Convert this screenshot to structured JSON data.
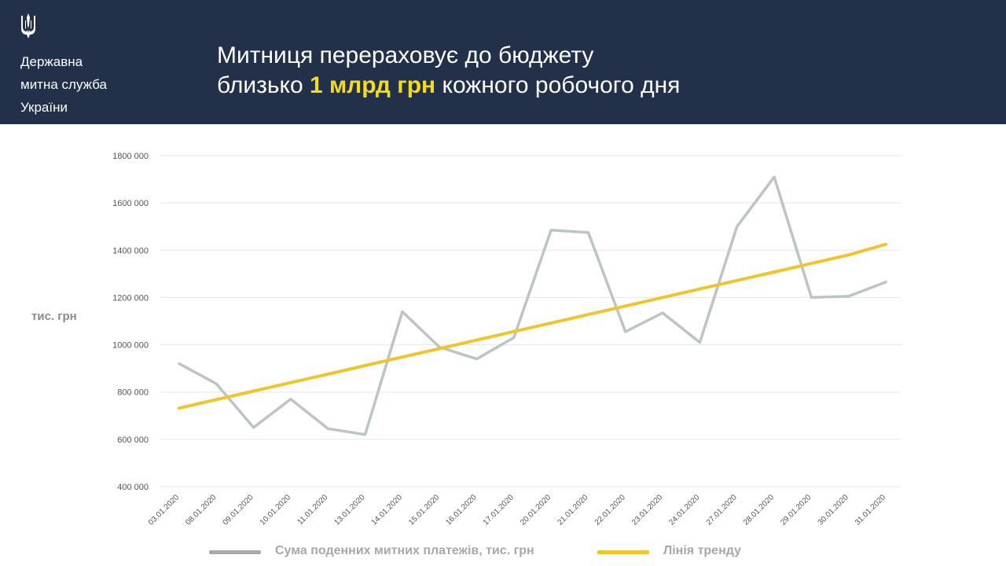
{
  "header": {
    "org_lines": [
      "Державна",
      "митна служба",
      "України"
    ],
    "title_line1": "Митниця перераховує до бюджету",
    "title_line2_before": "близько ",
    "title_line2_accent": "1 млрд грн",
    "title_line2_after": " кожного робочого дня",
    "accent_color": "#f2dc1c",
    "background_color": "#22304a"
  },
  "chart_data": {
    "type": "line",
    "x": [
      "03.01.2020",
      "08.01.2020",
      "09.01.2020",
      "10.01.2020",
      "11.01.2020",
      "13.01.2020",
      "14.01.2020",
      "15.01.2020",
      "16.01.2020",
      "17.01.2020",
      "20.01.2020",
      "21.01.2020",
      "22.01.2020",
      "23.01.2020",
      "24.01.2020",
      "27.01.2020",
      "28.01.2020",
      "29.01.2020",
      "30.01.2020",
      "31.01.2020"
    ],
    "series": [
      {
        "name": "Сума поденних митних платежів, тис. грн",
        "color": "#bcc5c3",
        "values": [
          920000,
          835000,
          650000,
          770000,
          645000,
          620000,
          1140000,
          990000,
          940000,
          1030000,
          1485000,
          1475000,
          1055000,
          1135000,
          1010000,
          1500000,
          1710000,
          1200000,
          1205000,
          1265000
        ]
      },
      {
        "name": "Лінія тренду",
        "color": "#f0c52c",
        "values": [
          732000,
          768000,
          804000,
          840000,
          876000,
          912000,
          948000,
          984000,
          1020000,
          1056000,
          1092000,
          1128000,
          1164000,
          1200000,
          1236000,
          1272000,
          1308000,
          1344000,
          1380000,
          1425000
        ]
      }
    ],
    "ylim": [
      400000,
      1800000
    ],
    "yticks": [
      400000,
      600000,
      800000,
      1000000,
      1200000,
      1400000,
      1600000,
      1800000
    ],
    "ytick_labels": [
      "400 000",
      "600 000",
      "800 000",
      "1000 000",
      "1200 000",
      "1400 000",
      "1600 000",
      "1800 000"
    ],
    "ylabel": "тис. грн",
    "grid": true,
    "legend_position": "bottom"
  }
}
